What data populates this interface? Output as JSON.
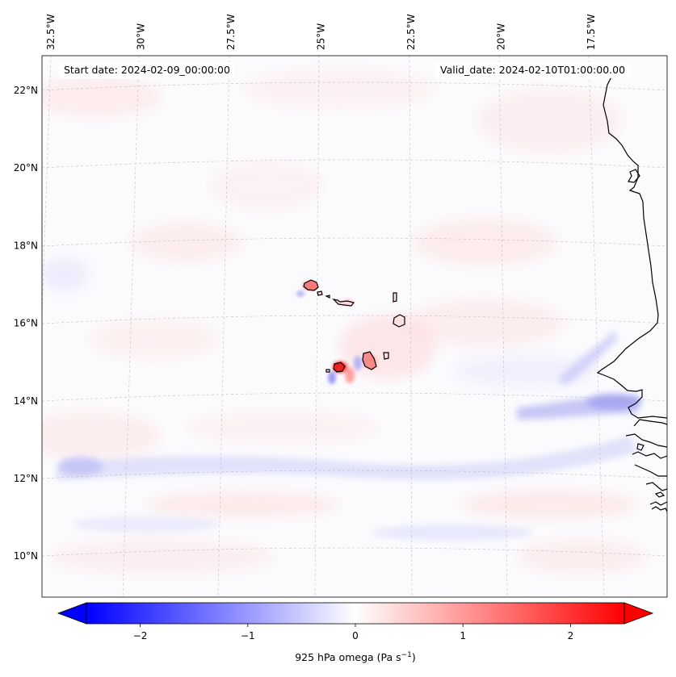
{
  "map": {
    "lon_ticks": [
      {
        "label": "32.5°W",
        "value": -32.5
      },
      {
        "label": "30°W",
        "value": -30
      },
      {
        "label": "27.5°W",
        "value": -27.5
      },
      {
        "label": "25°W",
        "value": -25
      },
      {
        "label": "22.5°W",
        "value": -22.5
      },
      {
        "label": "20°W",
        "value": -20
      },
      {
        "label": "17.5°W",
        "value": -17.5
      }
    ],
    "lat_ticks": [
      {
        "label": "22°N",
        "value": 22
      },
      {
        "label": "20°N",
        "value": 20
      },
      {
        "label": "18°N",
        "value": 18
      },
      {
        "label": "16°N",
        "value": 16
      },
      {
        "label": "14°N",
        "value": 14
      },
      {
        "label": "12°N",
        "value": 12
      },
      {
        "label": "10°N",
        "value": 10
      }
    ],
    "start_date": "Start date: 2024-02-09_00:00:00",
    "valid_date": "Valid_date: 2024-02-10T01:00:00.00",
    "colormap": "bwr",
    "colorbar": {
      "min": -2.5,
      "max": 2.5,
      "ticks": [
        {
          "label": "−2",
          "value": -2
        },
        {
          "label": "−1",
          "value": -1
        },
        {
          "label": "0",
          "value": 0
        },
        {
          "label": "1",
          "value": 1
        },
        {
          "label": "2",
          "value": 2
        }
      ],
      "label_text": "925 hPa omega (Pa s",
      "label_sup": "−1",
      "label_close": ")",
      "extend": "both"
    }
  }
}
